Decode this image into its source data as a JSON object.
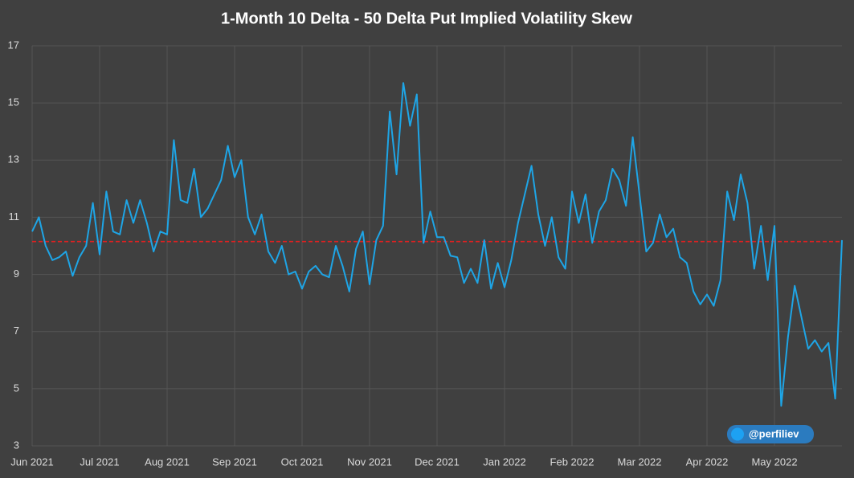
{
  "chart_data": {
    "type": "line",
    "title": "1-Month 10 Delta - 50 Delta Put Implied Volatility Skew",
    "categories": [
      "Jun 2021",
      null,
      null,
      null,
      null,
      null,
      null,
      null,
      null,
      null,
      "Jul 2021",
      null,
      null,
      null,
      null,
      null,
      null,
      null,
      null,
      null,
      "Aug 2021",
      null,
      null,
      null,
      null,
      null,
      null,
      null,
      null,
      null,
      "Sep 2021",
      null,
      null,
      null,
      null,
      null,
      null,
      null,
      null,
      null,
      "Oct 2021",
      null,
      null,
      null,
      null,
      null,
      null,
      null,
      null,
      null,
      "Nov 2021",
      null,
      null,
      null,
      null,
      null,
      null,
      null,
      null,
      null,
      "Dec 2021",
      null,
      null,
      null,
      null,
      null,
      null,
      null,
      null,
      null,
      "Jan 2022",
      null,
      null,
      null,
      null,
      null,
      null,
      null,
      null,
      null,
      "Feb 2022",
      null,
      null,
      null,
      null,
      null,
      null,
      null,
      null,
      null,
      "Mar 2022",
      null,
      null,
      null,
      null,
      null,
      null,
      null,
      null,
      null,
      "Apr 2022",
      null,
      null,
      null,
      null,
      null,
      null,
      null,
      null,
      null,
      "May 2022",
      null,
      null,
      null,
      null,
      null,
      null,
      null,
      null,
      null,
      null
    ],
    "series": [
      {
        "color": "#1ea5e6",
        "values": [
          10.5,
          11.0,
          10.0,
          9.5,
          9.6,
          9.8,
          8.95,
          9.6,
          10.0,
          11.5,
          9.7,
          11.9,
          10.5,
          10.4,
          11.6,
          10.8,
          11.6,
          10.8,
          9.8,
          10.5,
          10.4,
          13.7,
          11.6,
          11.5,
          12.7,
          11.0,
          11.3,
          11.8,
          12.3,
          13.5,
          12.4,
          13.0,
          11.0,
          10.4,
          11.1,
          9.8,
          9.4,
          10.0,
          9.0,
          9.1,
          8.5,
          9.1,
          9.3,
          9.0,
          8.9,
          10.0,
          9.3,
          8.4,
          9.9,
          10.5,
          8.65,
          10.2,
          10.7,
          14.7,
          12.5,
          15.7,
          14.2,
          15.3,
          10.1,
          11.2,
          10.3,
          10.3,
          9.65,
          9.6,
          8.7,
          9.2,
          8.7,
          10.2,
          8.5,
          9.4,
          8.55,
          9.5,
          10.8,
          11.8,
          12.8,
          11.1,
          10.0,
          11.0,
          9.6,
          9.2,
          11.9,
          10.8,
          11.8,
          10.1,
          11.2,
          11.6,
          12.7,
          12.3,
          11.4,
          13.8,
          11.8,
          9.8,
          10.1,
          11.1,
          10.3,
          10.6,
          9.6,
          9.4,
          8.4,
          7.95,
          8.3,
          7.9,
          8.8,
          11.9,
          10.9,
          12.5,
          11.5,
          9.2,
          10.7,
          8.8,
          10.7,
          4.4,
          6.8,
          8.6,
          7.5,
          6.4,
          6.7,
          6.3,
          6.6,
          4.65,
          10.2
        ]
      }
    ],
    "reference_line": {
      "value": 10.15,
      "color": "#e02020"
    },
    "ylim": [
      3,
      17
    ],
    "yticks": [
      3,
      5,
      7,
      9,
      11,
      13,
      15,
      17
    ],
    "grid": true,
    "watermark": "@perfiliev"
  }
}
